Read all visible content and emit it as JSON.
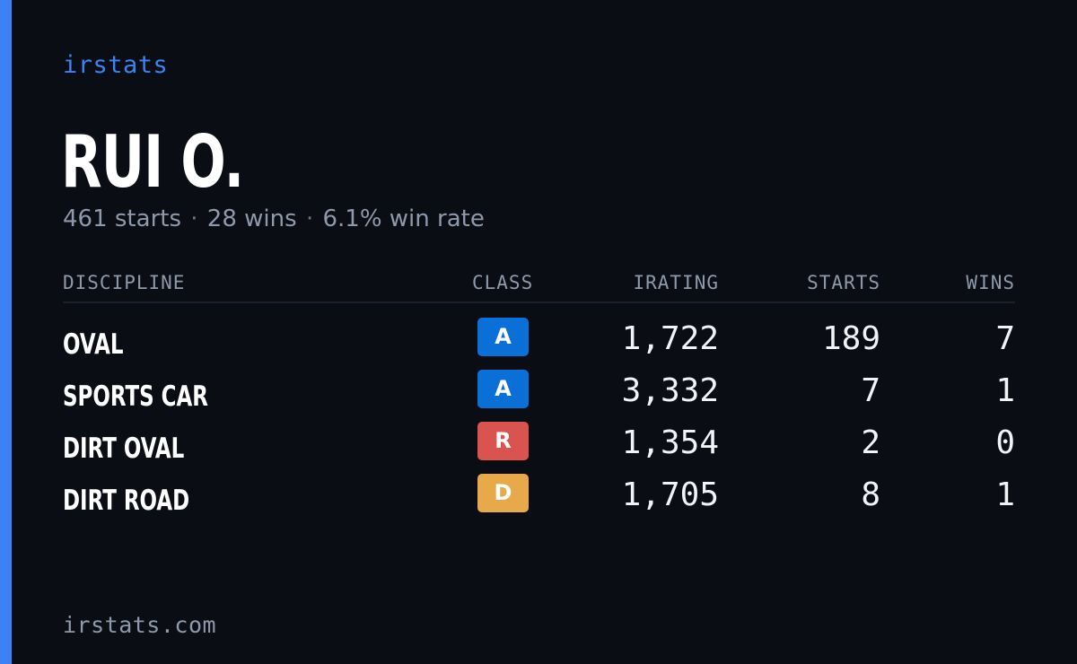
{
  "brand": "irstats",
  "driver": {
    "name": "RUI O.",
    "summary": {
      "starts": "461 starts",
      "wins": "28 wins",
      "win_rate": "6.1% win rate",
      "separator": "·"
    }
  },
  "table": {
    "headers": {
      "discipline": "DISCIPLINE",
      "class": "CLASS",
      "irating": "IRATING",
      "starts": "STARTS",
      "wins": "WINS"
    },
    "rows": [
      {
        "discipline": "OVAL",
        "class": "A",
        "class_color": "#0b6fd8",
        "irating": "1,722",
        "starts": "189",
        "wins": "7"
      },
      {
        "discipline": "SPORTS CAR",
        "class": "A",
        "class_color": "#0b6fd8",
        "irating": "3,332",
        "starts": "7",
        "wins": "1"
      },
      {
        "discipline": "DIRT OVAL",
        "class": "R",
        "class_color": "#d9534f",
        "irating": "1,354",
        "starts": "2",
        "wins": "0"
      },
      {
        "discipline": "DIRT ROAD",
        "class": "D",
        "class_color": "#e8a94a",
        "irating": "1,705",
        "starts": "8",
        "wins": "1"
      }
    ]
  },
  "footer": "irstats.com",
  "colors": {
    "background": "#0a0d14",
    "accent": "#3b82f6",
    "muted_text": "#8e99ab"
  }
}
